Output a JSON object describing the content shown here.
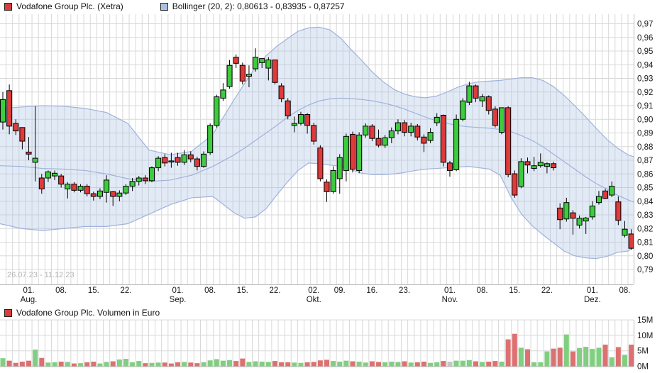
{
  "legend": {
    "price_series": "Vodafone Group Plc. (Xetra)",
    "bollinger": "Bollinger (20, 2): 0,80613 - 0,83935 - 0,87257",
    "volume_series": "Vodafone Group Plc. Volumen in Euro"
  },
  "date_range_label": "26.07.23 - 11.12.23",
  "colors": {
    "candle_up": "#3dcc3d",
    "candle_down": "#e03a3a",
    "candle_border": "#000000",
    "volume_up": "#80cf80",
    "volume_down": "#dd7070",
    "volume_neutral": "#c6c6c6",
    "bollinger_line": "#9fb3da",
    "bollinger_fill": "rgba(173,195,230,0.35)",
    "grid": "#d8d8d8",
    "axis_text": "#1a1a1a",
    "pane_border": "#bbbbbb"
  },
  "chart_data": {
    "type": "candlestick+volume+bollinger",
    "title": "Vodafone Group Plc. (Xetra) with Bollinger (20,2) and volume in Euro",
    "price_axis": {
      "min": 0.79,
      "max": 0.97,
      "ticks": [
        {
          "value": 0.97,
          "label": "0,97"
        },
        {
          "value": 0.96,
          "label": "0,96"
        },
        {
          "value": 0.95,
          "label": "0,95"
        },
        {
          "value": 0.94,
          "label": "0,94"
        },
        {
          "value": 0.93,
          "label": "0,93"
        },
        {
          "value": 0.92,
          "label": "0,92"
        },
        {
          "value": 0.91,
          "label": "0,91"
        },
        {
          "value": 0.9,
          "label": "0,90"
        },
        {
          "value": 0.89,
          "label": "0,89"
        },
        {
          "value": 0.88,
          "label": "0,88"
        },
        {
          "value": 0.87,
          "label": "0,87"
        },
        {
          "value": 0.86,
          "label": "0,86"
        },
        {
          "value": 0.85,
          "label": "0,85"
        },
        {
          "value": 0.84,
          "label": "0,84"
        },
        {
          "value": 0.83,
          "label": "0,83"
        },
        {
          "value": 0.82,
          "label": "0,82"
        },
        {
          "value": 0.81,
          "label": "0,81"
        },
        {
          "value": 0.8,
          "label": "0,80"
        },
        {
          "value": 0.79,
          "label": "0,79"
        }
      ]
    },
    "volume_axis": {
      "ticks": [
        {
          "value": 15,
          "label": "15M"
        },
        {
          "value": 10,
          "label": "10M"
        },
        {
          "value": 5,
          "label": "5M"
        },
        {
          "value": 0,
          "label": "0M"
        }
      ]
    },
    "x_ticks": [
      {
        "i": 4,
        "day": "01.",
        "month": "Aug."
      },
      {
        "i": 9,
        "day": "08."
      },
      {
        "i": 14,
        "day": "15."
      },
      {
        "i": 19,
        "day": "22."
      },
      {
        "i": 27,
        "day": "01.",
        "month": "Sep."
      },
      {
        "i": 32,
        "day": "08."
      },
      {
        "i": 37,
        "day": "15."
      },
      {
        "i": 42,
        "day": "22."
      },
      {
        "i": 48,
        "day": "02.",
        "month": "Okt."
      },
      {
        "i": 52,
        "day": "09."
      },
      {
        "i": 57,
        "day": "16."
      },
      {
        "i": 62,
        "day": "23."
      },
      {
        "i": 69,
        "day": "01.",
        "month": "Nov."
      },
      {
        "i": 74,
        "day": "08."
      },
      {
        "i": 79,
        "day": "15."
      },
      {
        "i": 84,
        "day": "22."
      },
      {
        "i": 91,
        "day": "01.",
        "month": "Dez."
      },
      {
        "i": 96,
        "day": "08."
      }
    ],
    "dates": [
      "26.07",
      "27.07",
      "28.07",
      "31.07",
      "01.08",
      "02.08",
      "03.08",
      "04.08",
      "07.08",
      "08.08",
      "09.08",
      "10.08",
      "11.08",
      "14.08",
      "15.08",
      "16.08",
      "17.08",
      "18.08",
      "21.08",
      "22.08",
      "23.08",
      "24.08",
      "25.08",
      "28.08",
      "29.08",
      "30.08",
      "31.08",
      "01.09",
      "04.09",
      "05.09",
      "06.09",
      "07.09",
      "08.09",
      "11.09",
      "12.09",
      "13.09",
      "14.09",
      "15.09",
      "18.09",
      "19.09",
      "20.09",
      "21.09",
      "22.09",
      "25.09",
      "26.09",
      "27.09",
      "28.09",
      "29.09",
      "02.10",
      "04.10",
      "05.10",
      "06.10",
      "09.10",
      "10.10",
      "11.10",
      "12.10",
      "13.10",
      "16.10",
      "17.10",
      "18.10",
      "19.10",
      "20.10",
      "23.10",
      "24.10",
      "25.10",
      "26.10",
      "27.10",
      "30.10",
      "31.10",
      "01.11",
      "02.11",
      "03.11",
      "06.11",
      "07.11",
      "08.11",
      "09.11",
      "10.11",
      "13.11",
      "14.11",
      "15.11",
      "16.11",
      "17.11",
      "20.11",
      "21.11",
      "22.11",
      "23.11",
      "24.11",
      "27.11",
      "28.11",
      "29.11",
      "30.11",
      "01.12",
      "04.12",
      "05.12",
      "06.12",
      "07.12",
      "08.12",
      "11.12"
    ],
    "ohlcv": [
      [
        0.898,
        0.92,
        0.8925,
        0.9145,
        2.6
      ],
      [
        0.921,
        0.9255,
        0.889,
        0.895,
        1.8
      ],
      [
        0.897,
        0.9,
        0.8885,
        0.8915,
        1.1
      ],
      [
        0.894,
        0.894,
        0.878,
        0.884,
        1.5
      ],
      [
        0.876,
        0.887,
        0.87,
        0.8745,
        1.8
      ],
      [
        0.8685,
        0.9095,
        0.8545,
        0.8715,
        5.4
      ],
      [
        0.857,
        0.86,
        0.8455,
        0.849,
        2.7
      ],
      [
        0.857,
        0.8625,
        0.854,
        0.8615,
        1.2
      ],
      [
        0.8585,
        0.8625,
        0.8555,
        0.8605,
        1.3
      ],
      [
        0.8585,
        0.86,
        0.85,
        0.8525,
        1.5
      ],
      [
        0.849,
        0.854,
        0.842,
        0.8525,
        1.4
      ],
      [
        0.8525,
        0.854,
        0.8465,
        0.848,
        0.9
      ],
      [
        0.848,
        0.8525,
        0.8465,
        0.851,
        1.0
      ],
      [
        0.851,
        0.8525,
        0.8435,
        0.8455,
        1.3
      ],
      [
        0.8455,
        0.847,
        0.8405,
        0.8435,
        1.5
      ],
      [
        0.8435,
        0.8495,
        0.8415,
        0.8475,
        0.9
      ],
      [
        0.8465,
        0.859,
        0.839,
        0.8555,
        1.4
      ],
      [
        0.847,
        0.8475,
        0.8365,
        0.8435,
        1.6
      ],
      [
        0.8435,
        0.848,
        0.84,
        0.846,
        2.2
      ],
      [
        0.846,
        0.8525,
        0.8445,
        0.851,
        2.4
      ],
      [
        0.851,
        0.857,
        0.8475,
        0.8545,
        1.3
      ],
      [
        0.8545,
        0.8585,
        0.8515,
        0.857,
        1.7
      ],
      [
        0.857,
        0.859,
        0.8525,
        0.855,
        1.0
      ],
      [
        0.855,
        0.8655,
        0.854,
        0.8645,
        1.1
      ],
      [
        0.8645,
        0.873,
        0.862,
        0.8715,
        1.2
      ],
      [
        0.872,
        0.8745,
        0.8655,
        0.868,
        1.2
      ],
      [
        0.8695,
        0.8755,
        0.8645,
        0.8693,
        0.9
      ],
      [
        0.872,
        0.8755,
        0.866,
        0.8685,
        1.3
      ],
      [
        0.8685,
        0.8775,
        0.8665,
        0.874,
        1.4
      ],
      [
        0.874,
        0.8765,
        0.8685,
        0.871,
        1.2
      ],
      [
        0.871,
        0.8725,
        0.8625,
        0.8655,
        1.0
      ],
      [
        0.8655,
        0.8765,
        0.8645,
        0.8745,
        1.3
      ],
      [
        0.8755,
        0.897,
        0.874,
        0.8955,
        1.9
      ],
      [
        0.8955,
        0.918,
        0.894,
        0.9165,
        2.3
      ],
      [
        0.9155,
        0.9265,
        0.9135,
        0.9215,
        1.8
      ],
      [
        0.924,
        0.9435,
        0.9225,
        0.9395,
        2.0
      ],
      [
        0.9455,
        0.9475,
        0.9375,
        0.941,
        1.7
      ],
      [
        0.9395,
        0.9415,
        0.9255,
        0.928,
        2.5
      ],
      [
        0.9315,
        0.9395,
        0.9235,
        0.933,
        1.4
      ],
      [
        0.937,
        0.952,
        0.935,
        0.9455,
        1.6
      ],
      [
        0.9415,
        0.9445,
        0.9375,
        0.9445,
        1.5
      ],
      [
        0.9375,
        0.9455,
        0.9285,
        0.9435,
        1.4
      ],
      [
        0.9435,
        0.9435,
        0.9255,
        0.927,
        1.7
      ],
      [
        0.9245,
        0.9265,
        0.9125,
        0.915,
        1.3
      ],
      [
        0.9135,
        0.9155,
        0.9,
        0.9025,
        1.3
      ],
      [
        0.8955,
        0.902,
        0.8905,
        0.897,
        1.2
      ],
      [
        0.897,
        0.9055,
        0.8955,
        0.9035,
        1.1
      ],
      [
        0.9035,
        0.9045,
        0.8895,
        0.8955,
        1.3
      ],
      [
        0.8955,
        0.8975,
        0.8815,
        0.884,
        1.4
      ],
      [
        0.879,
        0.881,
        0.8545,
        0.8565,
        1.9
      ],
      [
        0.854,
        0.856,
        0.8395,
        0.847,
        2.1
      ],
      [
        0.847,
        0.8655,
        0.8455,
        0.8625,
        1.7
      ],
      [
        0.8565,
        0.8745,
        0.8455,
        0.872,
        1.5
      ],
      [
        0.8625,
        0.8895,
        0.8545,
        0.8875,
        1.8
      ],
      [
        0.889,
        0.891,
        0.861,
        0.8635,
        1.6
      ],
      [
        0.8625,
        0.8905,
        0.8605,
        0.8885,
        1.5
      ],
      [
        0.8885,
        0.897,
        0.8865,
        0.895,
        1.2
      ],
      [
        0.895,
        0.8965,
        0.884,
        0.886,
        1.6
      ],
      [
        0.886,
        0.8925,
        0.8795,
        0.881,
        1.4
      ],
      [
        0.881,
        0.8885,
        0.879,
        0.8865,
        1.3
      ],
      [
        0.8865,
        0.894,
        0.8825,
        0.8915,
        1.5
      ],
      [
        0.8915,
        0.9,
        0.889,
        0.8975,
        1.4
      ],
      [
        0.8975,
        0.8995,
        0.8875,
        0.8905,
        1.6
      ],
      [
        0.8905,
        0.8975,
        0.8875,
        0.895,
        1.2
      ],
      [
        0.895,
        0.8965,
        0.8845,
        0.887,
        1.3
      ],
      [
        0.887,
        0.889,
        0.876,
        0.8825,
        1.5
      ],
      [
        0.8845,
        0.8935,
        0.8825,
        0.8905,
        1.1
      ],
      [
        0.8975,
        0.9045,
        0.895,
        0.9015,
        1.3
      ],
      [
        0.903,
        0.9035,
        0.8655,
        0.8685,
        1.7
      ],
      [
        0.868,
        0.8695,
        0.858,
        0.8625,
        1.5
      ],
      [
        0.863,
        0.9035,
        0.862,
        0.9,
        1.8
      ],
      [
        0.9,
        0.9155,
        0.8985,
        0.9135,
        1.8
      ],
      [
        0.9125,
        0.9275,
        0.9105,
        0.9245,
        2.0
      ],
      [
        0.9245,
        0.9255,
        0.9125,
        0.9155,
        1.6
      ],
      [
        0.9135,
        0.9185,
        0.909,
        0.9165,
        1.4
      ],
      [
        0.9165,
        0.9175,
        0.9035,
        0.9065,
        1.5
      ],
      [
        0.9075,
        0.9095,
        0.894,
        0.8955,
        1.7
      ],
      [
        0.8905,
        0.9085,
        0.889,
        0.9085,
        1.5
      ],
      [
        0.9085,
        0.9095,
        0.8575,
        0.8595,
        8.7
      ],
      [
        0.8601,
        0.8625,
        0.8425,
        0.8445,
        10.5
      ],
      [
        0.8508,
        0.8715,
        0.8495,
        0.869,
        6.0
      ],
      [
        0.869,
        0.872,
        0.8605,
        0.8665,
        5.5
      ],
      [
        0.864,
        0.8725,
        0.862,
        0.866,
        1.3
      ],
      [
        0.866,
        0.875,
        0.8645,
        0.8685,
        1.3
      ],
      [
        0.8655,
        0.8685,
        0.8605,
        0.8675,
        4.8
      ],
      [
        0.8675,
        0.869,
        0.8625,
        0.8645,
        5.7
      ],
      [
        0.835,
        0.8385,
        0.8195,
        0.8265,
        6.0
      ],
      [
        0.827,
        0.8425,
        0.825,
        0.839,
        10.3
      ],
      [
        0.8315,
        0.8335,
        0.8155,
        0.8275,
        4.8
      ],
      [
        0.8225,
        0.8295,
        0.82,
        0.8275,
        5.9
      ],
      [
        0.8255,
        0.8285,
        0.816,
        0.8277,
        6.3
      ],
      [
        0.8285,
        0.84,
        0.8265,
        0.8365,
        5.6
      ],
      [
        0.839,
        0.8475,
        0.8375,
        0.8435,
        6.0
      ],
      [
        0.8475,
        0.849,
        0.8415,
        0.842,
        7.0
      ],
      [
        0.8445,
        0.8545,
        0.843,
        0.851,
        2.9
      ],
      [
        0.8395,
        0.8435,
        0.8225,
        0.826,
        6.2
      ],
      [
        0.815,
        0.8255,
        0.8135,
        0.8195,
        3.7
      ],
      [
        0.816,
        0.8195,
        0.8045,
        0.8055,
        7.0
      ]
    ],
    "volume_neutral_indices": [
      69
    ],
    "bollinger_points": [
      [
        0,
        0.908,
        0.866,
        0.8235
      ],
      [
        30,
        0.909,
        0.8655,
        0.82
      ],
      [
        60,
        0.91,
        0.864,
        0.8185
      ],
      [
        90,
        0.9095,
        0.8635,
        0.82
      ],
      [
        120,
        0.908,
        0.8625,
        0.8215
      ],
      [
        150,
        0.905,
        0.86,
        0.8215
      ],
      [
        180,
        0.897,
        0.8565,
        0.8235
      ],
      [
        210,
        0.8775,
        0.8545,
        0.8305
      ],
      [
        240,
        0.874,
        0.8555,
        0.8375
      ],
      [
        270,
        0.8765,
        0.859,
        0.8425
      ],
      [
        300,
        0.889,
        0.8655,
        0.8435
      ],
      [
        330,
        0.9145,
        0.874,
        0.8315
      ],
      [
        345,
        0.9265,
        0.879,
        0.8275
      ],
      [
        360,
        0.938,
        0.8845,
        0.8285
      ],
      [
        375,
        0.9465,
        0.89,
        0.8345
      ],
      [
        390,
        0.9535,
        0.8955,
        0.8445
      ],
      [
        405,
        0.959,
        0.9015,
        0.854
      ],
      [
        420,
        0.9645,
        0.9065,
        0.8625
      ],
      [
        435,
        0.967,
        0.9105,
        0.868
      ],
      [
        450,
        0.9675,
        0.9135,
        0.8675
      ],
      [
        465,
        0.9655,
        0.915,
        0.8665
      ],
      [
        480,
        0.9595,
        0.9155,
        0.8655
      ],
      [
        495,
        0.951,
        0.9152,
        0.863
      ],
      [
        510,
        0.943,
        0.9145,
        0.8605
      ],
      [
        525,
        0.9345,
        0.9135,
        0.8595
      ],
      [
        540,
        0.9275,
        0.912,
        0.8595
      ],
      [
        555,
        0.922,
        0.91,
        0.86
      ],
      [
        570,
        0.9185,
        0.9075,
        0.861
      ],
      [
        585,
        0.9165,
        0.9045,
        0.8625
      ],
      [
        600,
        0.9158,
        0.9015,
        0.8635
      ],
      [
        615,
        0.917,
        0.899,
        0.864
      ],
      [
        630,
        0.92,
        0.897,
        0.8645
      ],
      [
        645,
        0.9235,
        0.8955,
        0.865
      ],
      [
        660,
        0.926,
        0.8945,
        0.8655
      ],
      [
        675,
        0.9275,
        0.894,
        0.8645
      ],
      [
        690,
        0.928,
        0.8935,
        0.8635
      ],
      [
        705,
        0.9285,
        0.8925,
        0.859
      ],
      [
        720,
        0.9295,
        0.891,
        0.843
      ],
      [
        735,
        0.9305,
        0.888,
        0.8305
      ],
      [
        750,
        0.9305,
        0.8845,
        0.822
      ],
      [
        765,
        0.9285,
        0.88,
        0.8155
      ],
      [
        780,
        0.924,
        0.8745,
        0.8095
      ],
      [
        795,
        0.9175,
        0.869,
        0.8035
      ],
      [
        810,
        0.91,
        0.8635,
        0.8
      ],
      [
        825,
        0.902,
        0.858,
        0.7985
      ],
      [
        840,
        0.8935,
        0.853,
        0.798
      ],
      [
        855,
        0.8855,
        0.849,
        0.7995
      ],
      [
        870,
        0.879,
        0.8445,
        0.8025
      ],
      [
        885,
        0.874,
        0.841,
        0.8035
      ],
      [
        893,
        0.8726,
        0.8394,
        0.8061
      ]
    ]
  }
}
